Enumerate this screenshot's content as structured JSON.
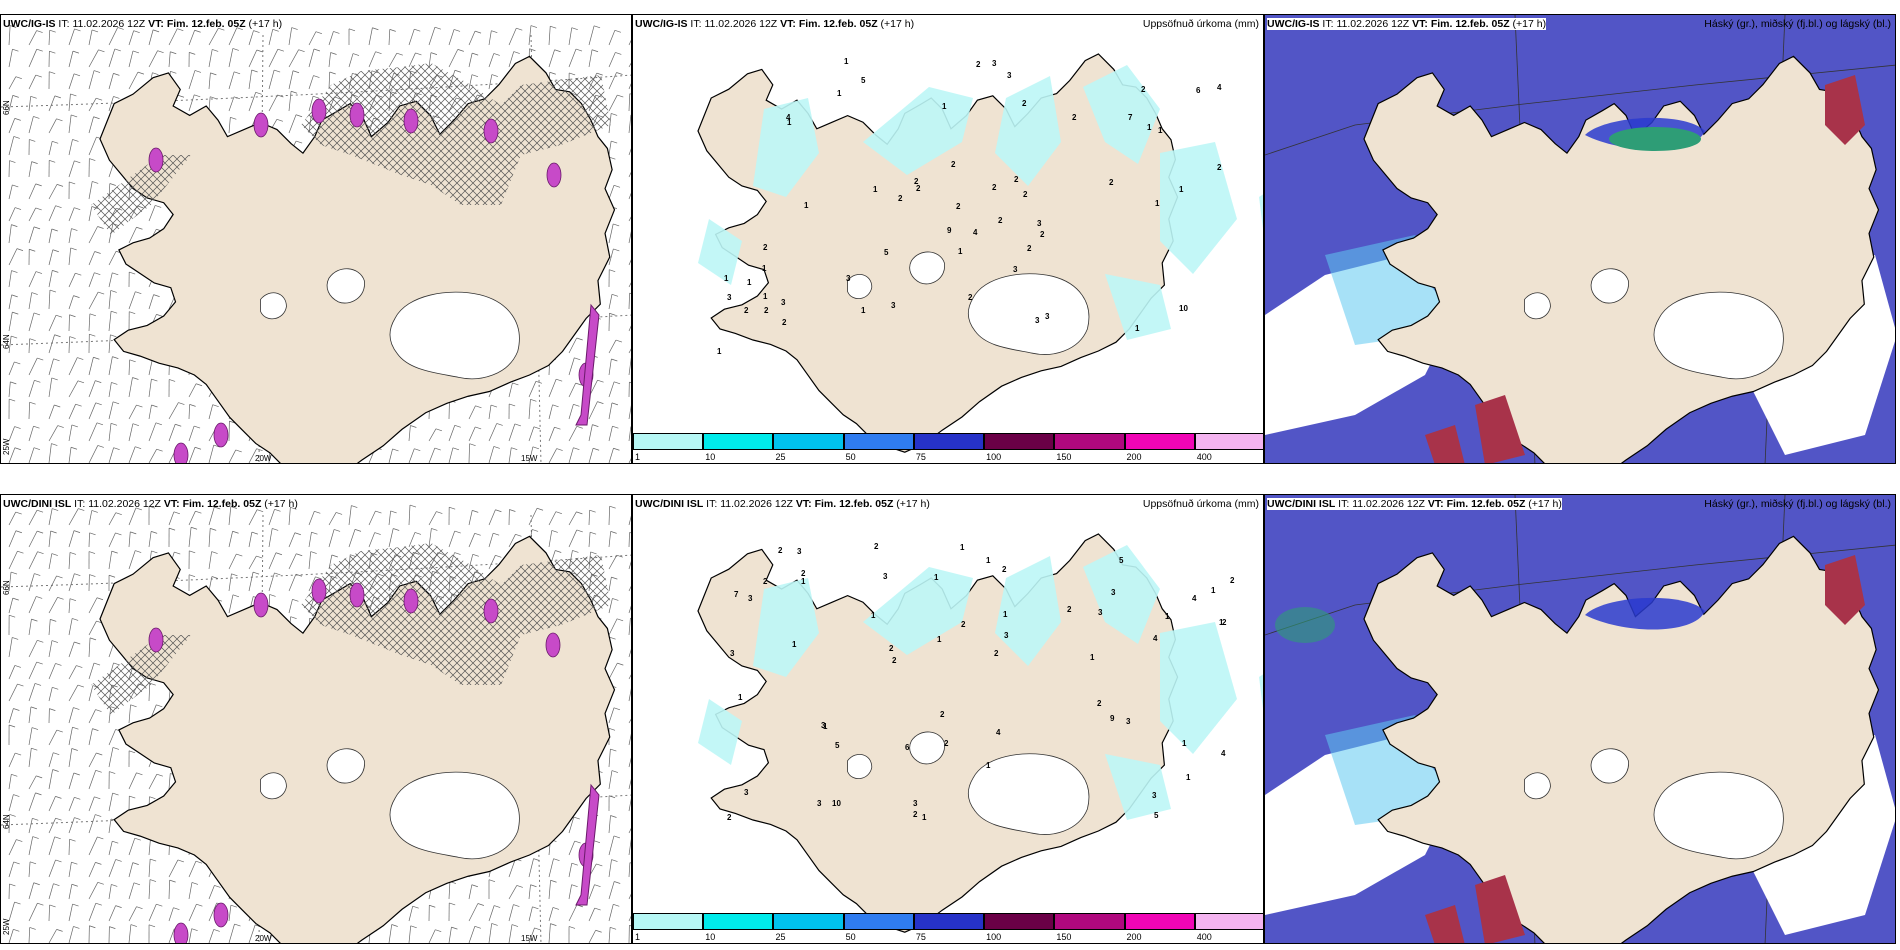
{
  "panels": [
    {
      "model": "UWC/IG-IS",
      "it_label": "IT:",
      "it": "11.02.2026 12Z",
      "vt_label": "VT:",
      "vt": "Fim. 12.feb. 05Z",
      "lead": "(+17 h)",
      "right": ""
    },
    {
      "model": "UWC/IG-IS",
      "it_label": "IT:",
      "it": "11.02.2026 12Z",
      "vt_label": "VT:",
      "vt": "Fim. 12.feb. 05Z",
      "lead": "(+17 h)",
      "right": "Uppsöfnuð úrkoma (mm)"
    },
    {
      "model": "UWC/IG-IS",
      "it_label": "IT:",
      "it": "11.02.2026 12Z",
      "vt_label": "VT:",
      "vt": "Fim. 12.feb. 05Z",
      "lead": "(+17 h)",
      "right": "Háský (gr.), miðský (fj.bl.) og lágský (bl.)"
    },
    {
      "model": "UWC/DINI ISL",
      "it_label": "IT:",
      "it": "11.02.2026 12Z",
      "vt_label": "VT:",
      "vt": "Fim. 12.feb. 05Z",
      "lead": "(+17 h)",
      "right": ""
    },
    {
      "model": "UWC/DINI ISL",
      "it_label": "IT:",
      "it": "11.02.2026 12Z",
      "vt_label": "VT:",
      "vt": "Fim. 12.feb. 05Z",
      "lead": "(+17 h)",
      "right": "Uppsöfnuð úrkoma (mm)"
    },
    {
      "model": "UWC/DINI ISL",
      "it_label": "IT:",
      "it": "11.02.2026 12Z",
      "vt_label": "VT:",
      "vt": "Fim. 12.feb. 05Z",
      "lead": "(+17 h)",
      "right": "Háský (gr.), miðský (fj.bl.) og lágský (bl.)"
    }
  ],
  "grid_labels": {
    "lat_66": "66N",
    "lat_64": "64N",
    "lon_25": "25W",
    "lon_20": "20W",
    "lon_15": "15W"
  },
  "precip_colorbar": {
    "colors": [
      "#b6f7f5",
      "#00eaea",
      "#00c2ee",
      "#2f7cf0",
      "#2632c8",
      "#6a0046",
      "#b0087e",
      "#f005b5",
      "#f4b4f0"
    ],
    "labels": [
      "1",
      "10",
      "25",
      "50",
      "75",
      "100",
      "150",
      "200",
      "400"
    ]
  },
  "precip_numbers_top": [
    "1",
    "1",
    "2",
    "1",
    "1",
    "1",
    "2",
    "1",
    "5",
    "6",
    "7",
    "5",
    "4",
    "4",
    "3",
    "3",
    "2",
    "1",
    "3",
    "3",
    "2",
    "2",
    "2",
    "2",
    "9",
    "10",
    "3",
    "2",
    "2",
    "2",
    "2",
    "1",
    "2",
    "1",
    "3",
    "2",
    "4",
    "1",
    "2",
    "2",
    "1",
    "1",
    "2",
    "1",
    "1",
    "1",
    "2",
    "3",
    "3",
    "3",
    "1",
    "2",
    "2",
    "1",
    "3",
    "1",
    "2",
    "2",
    "2"
  ],
  "precip_numbers_bottom": [
    "1",
    "2",
    "1",
    "1",
    "2",
    "5",
    "3",
    "2",
    "3",
    "3",
    "3",
    "1",
    "6",
    "4",
    "7",
    "5",
    "4",
    "4",
    "2",
    "1",
    "2",
    "2",
    "3",
    "9",
    "10",
    "2",
    "2",
    "5",
    "2",
    "4",
    "2",
    "1",
    "1",
    "1",
    "1",
    "1",
    "2",
    "3",
    "3",
    "2",
    "3",
    "1",
    "2",
    "3",
    "2",
    "1",
    "3",
    "3",
    "1",
    "3",
    "1",
    "1",
    "1",
    "2",
    "2",
    "3",
    "2",
    "1",
    "1"
  ],
  "colors": {
    "land": "#efe3d2",
    "coast": "#000000",
    "precip_light": "#bdf6f6",
    "cloud_high": "#5255c6",
    "cloud_mid": "#2a3bcf",
    "cloud_low": "#5ec8f0",
    "cloud_green": "#2e9d76",
    "cloud_red": "#a8334a",
    "magenta": "#c74ac8"
  }
}
